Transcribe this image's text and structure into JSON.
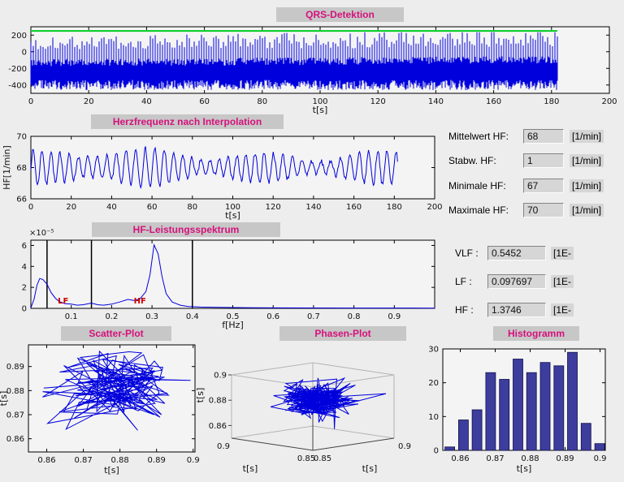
{
  "window": {
    "bg": "#ededed"
  },
  "colors": {
    "axes_bg": "#f4f4f4",
    "signal_blue": "#0000dd",
    "marker_green": "#00cc22",
    "bar_fill": "#3d3d9e",
    "bar_edge": "#10104a",
    "annotation_red": "#cc0000",
    "title_text": "#d4117c",
    "title_bg": "#c7c7c7"
  },
  "fields": [
    {
      "id": "mittelwert-hf",
      "label": "Mittelwert HF:",
      "value": "68",
      "unit": "[1/min]"
    },
    {
      "id": "stabw-hf",
      "label": "Stabw. HF:",
      "value": "1",
      "unit": "[1/min]"
    },
    {
      "id": "minimale-hf",
      "label": "Minimale HF:",
      "value": "67",
      "unit": "[1/min]"
    },
    {
      "id": "maximale-hf",
      "label": "Maximale HF:",
      "value": "70",
      "unit": "[1/min]"
    },
    {
      "id": "vlf",
      "label": "VLF :",
      "value": "0.5452",
      "unit": "[1E-"
    },
    {
      "id": "lf",
      "label": "LF :",
      "value": "0.097697",
      "unit": "[1E-"
    },
    {
      "id": "hf",
      "label": "HF :",
      "value": "1.3746",
      "unit": "[1E-"
    }
  ],
  "chart_data": [
    {
      "id": "qrs",
      "type": "line",
      "title": "QRS-Detektion",
      "xlabel": "t[s]",
      "xlim": [
        0,
        200
      ],
      "ylim": [
        -500,
        300
      ],
      "xticks": [
        0,
        20,
        40,
        60,
        80,
        100,
        120,
        140,
        160,
        180,
        200
      ],
      "yticks": [
        200,
        0,
        -200,
        -400
      ],
      "series": [
        {
          "name": "ecg-signal",
          "color": "#0000dd",
          "t_end": 182,
          "band_bottom": [
            -460,
            -340
          ],
          "band_top": [
            -180,
            -50
          ],
          "qrs_spike_max": 235,
          "beat_interval_s": 0.9
        },
        {
          "name": "detection-marker-line",
          "color": "#00cc22",
          "y": 250,
          "t_end": 182
        }
      ]
    },
    {
      "id": "hf-interpolation",
      "type": "line",
      "title": "Herzfrequenz nach Interpolation",
      "xlabel": "t[s]",
      "ylabel": "HF[1/min]",
      "xlim": [
        0,
        200
      ],
      "ylim": [
        66,
        70
      ],
      "xticks": [
        0,
        20,
        40,
        60,
        80,
        100,
        120,
        140,
        160,
        180,
        200
      ],
      "yticks": [
        66,
        68,
        70
      ],
      "series": [
        {
          "name": "heart-rate",
          "color": "#0000dd",
          "t_end": 182,
          "mean": 68,
          "amp": 1.1,
          "period_s": 4.6,
          "range": [
            66.2,
            69.6
          ]
        }
      ]
    },
    {
      "id": "spectrum",
      "type": "line",
      "title": "HF-Leistungsspektrum",
      "xlabel": "f[Hz]",
      "exponent_label": "×10⁻⁵",
      "unit_scale": "1e-5",
      "xlim": [
        0,
        1
      ],
      "ylim": [
        0,
        6.5
      ],
      "xticks": [
        0.1,
        0.2,
        0.3,
        0.4,
        0.5,
        0.6,
        0.7,
        0.8,
        0.9
      ],
      "yticks": [
        0,
        2,
        4,
        6
      ],
      "band_lines": [
        0.04,
        0.15,
        0.4
      ],
      "annotations": [
        {
          "text": "LF",
          "x": 0.08,
          "y": 0.45
        },
        {
          "text": "HF",
          "x": 0.27,
          "y": 0.45
        }
      ],
      "points": [
        [
          0,
          0.05
        ],
        [
          0.008,
          0.9
        ],
        [
          0.015,
          2.2
        ],
        [
          0.022,
          2.85
        ],
        [
          0.03,
          2.75
        ],
        [
          0.04,
          2.3
        ],
        [
          0.05,
          1.5
        ],
        [
          0.06,
          1.0
        ],
        [
          0.07,
          0.65
        ],
        [
          0.085,
          0.45
        ],
        [
          0.1,
          0.4
        ],
        [
          0.115,
          0.3
        ],
        [
          0.13,
          0.35
        ],
        [
          0.15,
          0.5
        ],
        [
          0.165,
          0.35
        ],
        [
          0.18,
          0.3
        ],
        [
          0.2,
          0.4
        ],
        [
          0.22,
          0.6
        ],
        [
          0.24,
          0.85
        ],
        [
          0.255,
          0.75
        ],
        [
          0.27,
          0.9
        ],
        [
          0.285,
          1.6
        ],
        [
          0.295,
          3.2
        ],
        [
          0.305,
          6.05
        ],
        [
          0.315,
          5.2
        ],
        [
          0.325,
          3.0
        ],
        [
          0.335,
          1.4
        ],
        [
          0.35,
          0.6
        ],
        [
          0.37,
          0.3
        ],
        [
          0.39,
          0.18
        ],
        [
          0.42,
          0.12
        ],
        [
          0.46,
          0.09
        ],
        [
          0.5,
          0.08
        ],
        [
          0.55,
          0.06
        ],
        [
          0.6,
          0.05
        ],
        [
          0.7,
          0.04
        ],
        [
          0.8,
          0.03
        ],
        [
          0.9,
          0.03
        ],
        [
          1,
          0.02
        ]
      ]
    },
    {
      "id": "scatter",
      "type": "scatter",
      "title": "Scatter-Plot",
      "xlabel": "t[s]",
      "ylabel": "t[s]",
      "xlim": [
        0.855,
        0.9005
      ],
      "ylim": [
        0.8545,
        0.899
      ],
      "xticks": [
        0.86,
        0.87,
        0.88,
        0.89,
        0.9
      ],
      "yticks": [
        0.86,
        0.87,
        0.88,
        0.89
      ],
      "generator": {
        "n": 150,
        "cx": 0.8805,
        "cy": 0.8805,
        "sd": 0.0085,
        "seed": 9
      }
    },
    {
      "id": "phase",
      "type": "line3d",
      "title": "Phasen-Plot",
      "xlabel": "t[s]",
      "ylabel": "t[s]",
      "zlabel": "t[s]",
      "xticks": [
        0.85,
        0.9
      ],
      "yticks": [
        0.85,
        0.9
      ],
      "zticks": [
        0.9,
        0.88,
        0.86
      ],
      "xlim": [
        0.85,
        0.9
      ],
      "ylim": [
        0.85,
        0.9
      ],
      "zlim": [
        0.85,
        0.9
      ],
      "generator": {
        "n": 240,
        "cx": 0.52,
        "cy": 0.45,
        "cz": 0.62,
        "sdx": 0.17,
        "sdy": 0.17,
        "sdz": 0.13,
        "seed": 21
      }
    },
    {
      "id": "histogram",
      "type": "bar",
      "title": "Histogramm",
      "xlabel": "t[s]",
      "xlim": [
        0.855,
        0.9015
      ],
      "ylim": [
        0,
        30
      ],
      "xticks": [
        0.86,
        0.87,
        0.88,
        0.89,
        0.9
      ],
      "yticks": [
        0,
        10,
        20,
        30
      ],
      "bar_width": 0.0028,
      "centers": [
        0.857,
        0.8609,
        0.8648,
        0.8687,
        0.8726,
        0.8765,
        0.8804,
        0.8843,
        0.8882,
        0.8921,
        0.896,
        0.8999
      ],
      "values": [
        1,
        9,
        12,
        23,
        21,
        27,
        23,
        26,
        25,
        29,
        8,
        2
      ]
    }
  ]
}
